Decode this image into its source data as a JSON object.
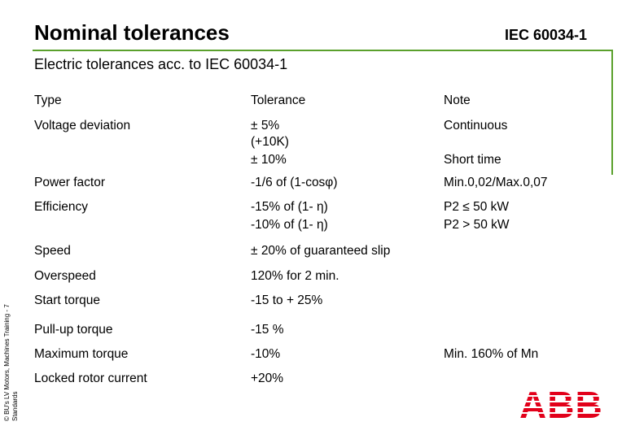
{
  "header": {
    "title": "Nominal tolerances",
    "standard": "IEC 60034-1",
    "subtitle": "Electric tolerances acc. to IEC 60034-1"
  },
  "table": {
    "columns": [
      "Type",
      "Tolerance",
      "Note"
    ],
    "rows": [
      {
        "type": "Voltage deviation",
        "tolerance": [
          "±  5%",
          "(+10K)",
          "±  10%"
        ],
        "note": [
          "Continuous",
          "Short time"
        ]
      },
      {
        "type": "Power factor",
        "tolerance": [
          "-1/6 of (1-cosφ)"
        ],
        "note": [
          "Min.0,02/Max.0,07"
        ]
      },
      {
        "type": "Efficiency",
        "tolerance": [
          "-15% of (1- η)",
          "-10% of (1- η)"
        ],
        "note": [
          "P2 ≤ 50 kW",
          "P2 > 50 kW"
        ]
      },
      {
        "type": "Speed",
        "tolerance": [
          "± 20% of guaranteed slip"
        ],
        "note": []
      },
      {
        "type": "Overspeed",
        "tolerance": [
          "120% for 2 min."
        ],
        "note": []
      },
      {
        "type": "Start torque",
        "tolerance": [
          "-15 to + 25%"
        ],
        "note": []
      },
      {
        "type": "Pull-up torque",
        "tolerance": [
          "-15 %"
        ],
        "note": []
      },
      {
        "type": "Maximum torque",
        "tolerance": [
          "-10%"
        ],
        "note": [
          "Min. 160% of Mn"
        ]
      },
      {
        "type": "Locked rotor current",
        "tolerance": [
          "+20%"
        ],
        "note": []
      }
    ]
  },
  "footer": {
    "side_note": [
      "© BU's LV Motors, Machines Training - 7",
      "Standards"
    ],
    "logo": "ABB"
  }
}
